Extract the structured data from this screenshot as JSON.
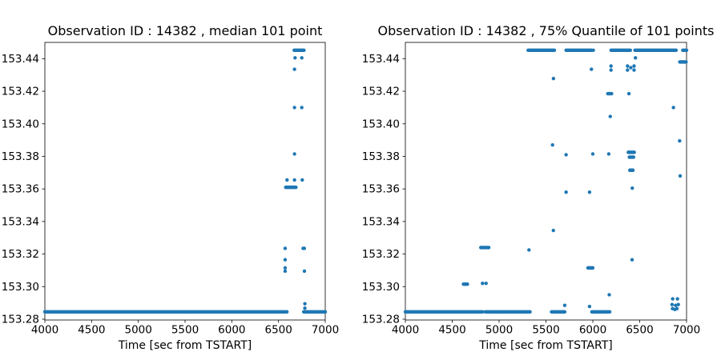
{
  "figure": {
    "background": "#ffffff",
    "text_color": "#000000",
    "marker_color": "#1f77b4"
  },
  "chart_data": [
    {
      "type": "scatter",
      "title": "Observation ID : 14382 , median 101 point",
      "xlabel": "Time [sec from TSTART]",
      "ylabel": "",
      "color": "#1f77b4",
      "grid": false,
      "legend": null,
      "xlim": [
        4000,
        7000
      ],
      "ylim": [
        153.2795,
        153.45
      ],
      "xticks": [
        4000,
        4500,
        5000,
        5500,
        6000,
        6500,
        7000
      ],
      "yticks": [
        153.28,
        153.3,
        153.32,
        153.34,
        153.36,
        153.38,
        153.4,
        153.42,
        153.44
      ],
      "runs": [
        [
          4000,
          6590,
          153.2845
        ],
        [
          6770,
          7000,
          153.2845
        ],
        [
          6577,
          6686,
          153.361
        ],
        [
          6668,
          6772,
          153.4452
        ]
      ],
      "points": [
        [
          6677,
          153.4405
        ],
        [
          6749,
          153.4405
        ],
        [
          6671,
          153.4335
        ],
        [
          6671,
          153.41
        ],
        [
          6749,
          153.41
        ],
        [
          6671,
          153.3815
        ],
        [
          6591,
          153.3655
        ],
        [
          6671,
          153.3655
        ],
        [
          6754,
          153.3655
        ],
        [
          6571,
          153.3235
        ],
        [
          6763,
          153.3235
        ],
        [
          6776,
          153.3235
        ],
        [
          6571,
          153.3165
        ],
        [
          6571,
          153.3115
        ],
        [
          6571,
          153.3095
        ],
        [
          6777,
          153.3095
        ],
        [
          6782,
          153.2895
        ],
        [
          6782,
          153.2868
        ]
      ]
    },
    {
      "type": "scatter",
      "title": "Observation ID : 14382 , 75% Quantile of 101 points",
      "xlabel": "Time [sec from TSTART]",
      "ylabel": "",
      "color": "#1f77b4",
      "grid": false,
      "legend": null,
      "xlim": [
        4000,
        7000
      ],
      "ylim": [
        153.2795,
        153.45
      ],
      "xticks": [
        4000,
        4500,
        5000,
        5500,
        6000,
        6500,
        7000
      ],
      "yticks": [
        153.28,
        153.3,
        153.32,
        153.34,
        153.36,
        153.38,
        153.4,
        153.42,
        153.44
      ],
      "runs": [
        [
          4000,
          4825,
          153.2845
        ],
        [
          4855,
          5330,
          153.2845
        ],
        [
          5560,
          5700,
          153.2845
        ],
        [
          5990,
          6180,
          153.2845
        ],
        [
          5310,
          5590,
          153.4452
        ],
        [
          5715,
          5985,
          153.4452
        ],
        [
          6195,
          6400,
          153.4452
        ],
        [
          6450,
          6888,
          153.4452
        ],
        [
          6960,
          7000,
          153.4452
        ],
        [
          6928,
          6995,
          153.438
        ],
        [
          4805,
          4890,
          153.324
        ],
        [
          4620,
          4662,
          153.3015
        ],
        [
          5948,
          6000,
          153.3115
        ],
        [
          6378,
          6442,
          153.3825
        ],
        [
          6390,
          6435,
          153.3795
        ],
        [
          6395,
          6428,
          153.3715
        ],
        [
          6160,
          6200,
          153.4185
        ]
      ],
      "points": [
        [
          6005,
          153.4452
        ],
        [
          6455,
          153.4405
        ],
        [
          5985,
          153.4335
        ],
        [
          6194,
          153.4355
        ],
        [
          6194,
          153.433
        ],
        [
          6370,
          153.4355
        ],
        [
          6370,
          153.433
        ],
        [
          6405,
          153.4345
        ],
        [
          6440,
          153.4355
        ],
        [
          6440,
          153.433
        ],
        [
          5580,
          153.4278
        ],
        [
          6385,
          153.4185
        ],
        [
          6860,
          153.41
        ],
        [
          6186,
          153.4045
        ],
        [
          6926,
          153.3895
        ],
        [
          5570,
          153.387
        ],
        [
          5715,
          153.381
        ],
        [
          6000,
          153.3815
        ],
        [
          6170,
          153.3815
        ],
        [
          6932,
          153.368
        ],
        [
          6421,
          153.3605
        ],
        [
          5715,
          153.358
        ],
        [
          5965,
          153.358
        ],
        [
          5579,
          153.3345
        ],
        [
          5319,
          153.3225
        ],
        [
          6419,
          153.3165
        ],
        [
          4823,
          153.302
        ],
        [
          4861,
          153.302
        ],
        [
          6175,
          153.295
        ],
        [
          6852,
          153.2925
        ],
        [
          6903,
          153.2925
        ],
        [
          5700,
          153.2885
        ],
        [
          5965,
          153.2878
        ],
        [
          6845,
          153.289
        ],
        [
          6883,
          153.2885
        ],
        [
          6912,
          153.289
        ],
        [
          6850,
          153.2865
        ],
        [
          6875,
          153.286
        ],
        [
          6898,
          153.2865
        ]
      ]
    }
  ]
}
